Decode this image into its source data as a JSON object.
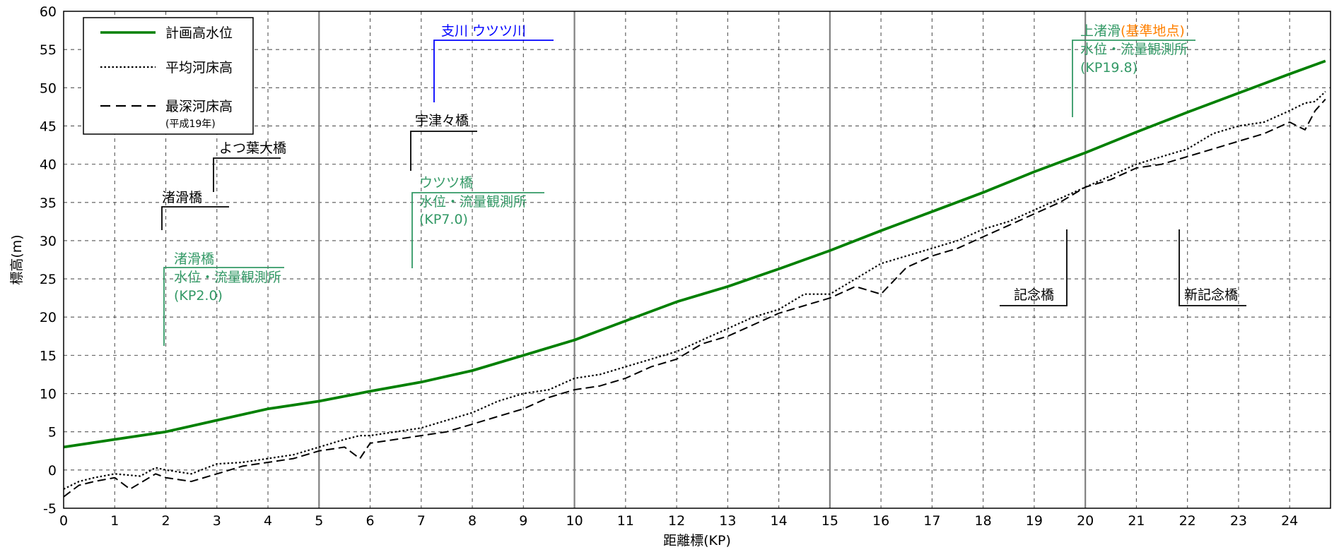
{
  "chart_data": {
    "type": "line",
    "xlabel": "距離標(KP)",
    "ylabel": "標高(m)",
    "xlim": [
      0,
      24.8
    ],
    "ylim": [
      -5,
      60
    ],
    "x_tick_labels": [
      "0",
      "1",
      "2",
      "3",
      "4",
      "5",
      "6",
      "7",
      "8",
      "9",
      "10",
      "11",
      "12",
      "13",
      "14",
      "15",
      "16",
      "17",
      "18",
      "19",
      "20",
      "21",
      "22",
      "23",
      "24"
    ],
    "y_tick_labels": [
      "-5",
      "0",
      "5",
      "10",
      "15",
      "20",
      "25",
      "30",
      "35",
      "40",
      "45",
      "50",
      "55",
      "60"
    ],
    "grid": true,
    "legend_position": "top-left",
    "legend": {
      "items": [
        {
          "label": "計画高水位",
          "style": "solid",
          "color": "#008000"
        },
        {
          "label": "平均河床高",
          "style": "dotted",
          "color": "#000000"
        },
        {
          "label": "最深河床高",
          "style": "dashed",
          "color": "#000000"
        }
      ],
      "note": "(平成19年)"
    },
    "series": [
      {
        "name": "計画高水位",
        "style": "solid",
        "color": "#008000",
        "x": [
          0,
          1,
          2,
          3,
          4,
          5,
          6,
          7,
          8,
          9,
          10,
          11,
          12,
          13,
          14,
          15,
          16,
          17,
          18,
          19,
          20,
          21,
          22,
          23,
          24,
          24.7
        ],
        "y": [
          3.0,
          4.0,
          5.0,
          6.5,
          8.0,
          9.0,
          10.3,
          11.5,
          13.0,
          15.0,
          17.0,
          19.5,
          22.0,
          24.0,
          26.3,
          28.7,
          31.3,
          33.8,
          36.3,
          39.0,
          41.5,
          44.2,
          46.8,
          49.3,
          51.8,
          53.5
        ]
      },
      {
        "name": "平均河床高",
        "style": "dotted",
        "color": "#000000",
        "x": [
          0,
          0.3,
          0.6,
          1,
          1.5,
          1.8,
          2,
          2.5,
          3,
          3.5,
          4,
          4.5,
          5,
          5.5,
          5.8,
          6,
          6.5,
          7,
          7.5,
          8,
          8.5,
          9,
          9.5,
          10,
          10.5,
          11,
          11.5,
          12,
          12.5,
          13,
          13.5,
          14,
          14.5,
          15,
          15.5,
          16,
          16.5,
          17,
          17.5,
          18,
          18.5,
          19,
          19.5,
          20,
          20.5,
          21,
          21.5,
          22,
          22.5,
          23,
          23.5,
          24,
          24.3,
          24.5,
          24.7
        ],
        "y": [
          -2.5,
          -1.5,
          -1.0,
          -0.5,
          -0.8,
          0.3,
          0.0,
          -0.5,
          0.8,
          1.0,
          1.5,
          2.0,
          3.0,
          4.0,
          4.5,
          4.5,
          5.0,
          5.5,
          6.5,
          7.5,
          9.0,
          10.0,
          10.5,
          12.0,
          12.5,
          13.5,
          14.5,
          15.5,
          17.0,
          18.5,
          20.0,
          21.0,
          23.0,
          23.0,
          25.0,
          27.0,
          28.0,
          29.0,
          30.0,
          31.5,
          32.5,
          34.0,
          35.5,
          37.0,
          38.5,
          40.0,
          41.0,
          42.0,
          44.0,
          45.0,
          45.5,
          47.0,
          48.0,
          48.2,
          49.5
        ]
      },
      {
        "name": "最深河床高",
        "style": "dashed",
        "color": "#000000",
        "x": [
          0,
          0.3,
          0.6,
          1,
          1.3,
          1.8,
          2,
          2.5,
          3,
          3.5,
          4,
          4.5,
          5,
          5.5,
          5.8,
          6,
          6.5,
          7,
          7.5,
          8,
          8.5,
          9,
          9.5,
          10,
          10.5,
          11,
          11.5,
          12,
          12.5,
          13,
          13.5,
          14,
          14.5,
          15,
          15.5,
          16,
          16.5,
          17,
          17.5,
          18,
          18.5,
          19,
          19.5,
          20,
          20.5,
          21,
          21.5,
          22,
          22.5,
          23,
          23.5,
          24,
          24.3,
          24.5,
          24.7
        ],
        "y": [
          -3.5,
          -2.0,
          -1.5,
          -1.0,
          -2.5,
          -0.5,
          -1.0,
          -1.5,
          -0.5,
          0.5,
          1.0,
          1.5,
          2.5,
          3.0,
          1.5,
          3.5,
          4.0,
          4.5,
          5.0,
          6.0,
          7.0,
          8.0,
          9.5,
          10.5,
          11.0,
          12.0,
          13.5,
          14.5,
          16.5,
          17.5,
          19.0,
          20.5,
          21.5,
          22.5,
          24.0,
          23.0,
          26.5,
          28.0,
          29.0,
          30.5,
          32.0,
          33.5,
          35.0,
          37.0,
          38.0,
          39.5,
          40.0,
          41.0,
          42.0,
          43.0,
          44.0,
          45.5,
          44.5,
          47.0,
          48.5
        ]
      }
    ],
    "annotations": [
      {
        "text": "支川 ウツツ川",
        "color": "#0000ff"
      },
      {
        "text": "宇津々橋",
        "color": "#000000"
      },
      {
        "text": "よつ葉大橋",
        "color": "#000000"
      },
      {
        "text": "渚滑橋",
        "color": "#000000"
      },
      {
        "text": "ウツツ橋",
        "color": "#339966"
      },
      {
        "text": "水位・流量観測所",
        "color": "#339966"
      },
      {
        "text": "(KP7.0)",
        "color": "#339966"
      },
      {
        "text": "渚滑橋",
        "color": "#339966"
      },
      {
        "text": "水位・流量観測所",
        "color": "#339966"
      },
      {
        "text": "(KP2.0)",
        "color": "#339966"
      },
      {
        "text": "上渚滑",
        "color": "#339966"
      },
      {
        "text": "(基準地点)",
        "color": "#ff8000"
      },
      {
        "text": "水位・流量観測所",
        "color": "#339966"
      },
      {
        "text": "(KP19.8)",
        "color": "#339966"
      },
      {
        "text": "記念橋",
        "color": "#000000"
      },
      {
        "text": "新記念橋",
        "color": "#000000"
      }
    ]
  }
}
